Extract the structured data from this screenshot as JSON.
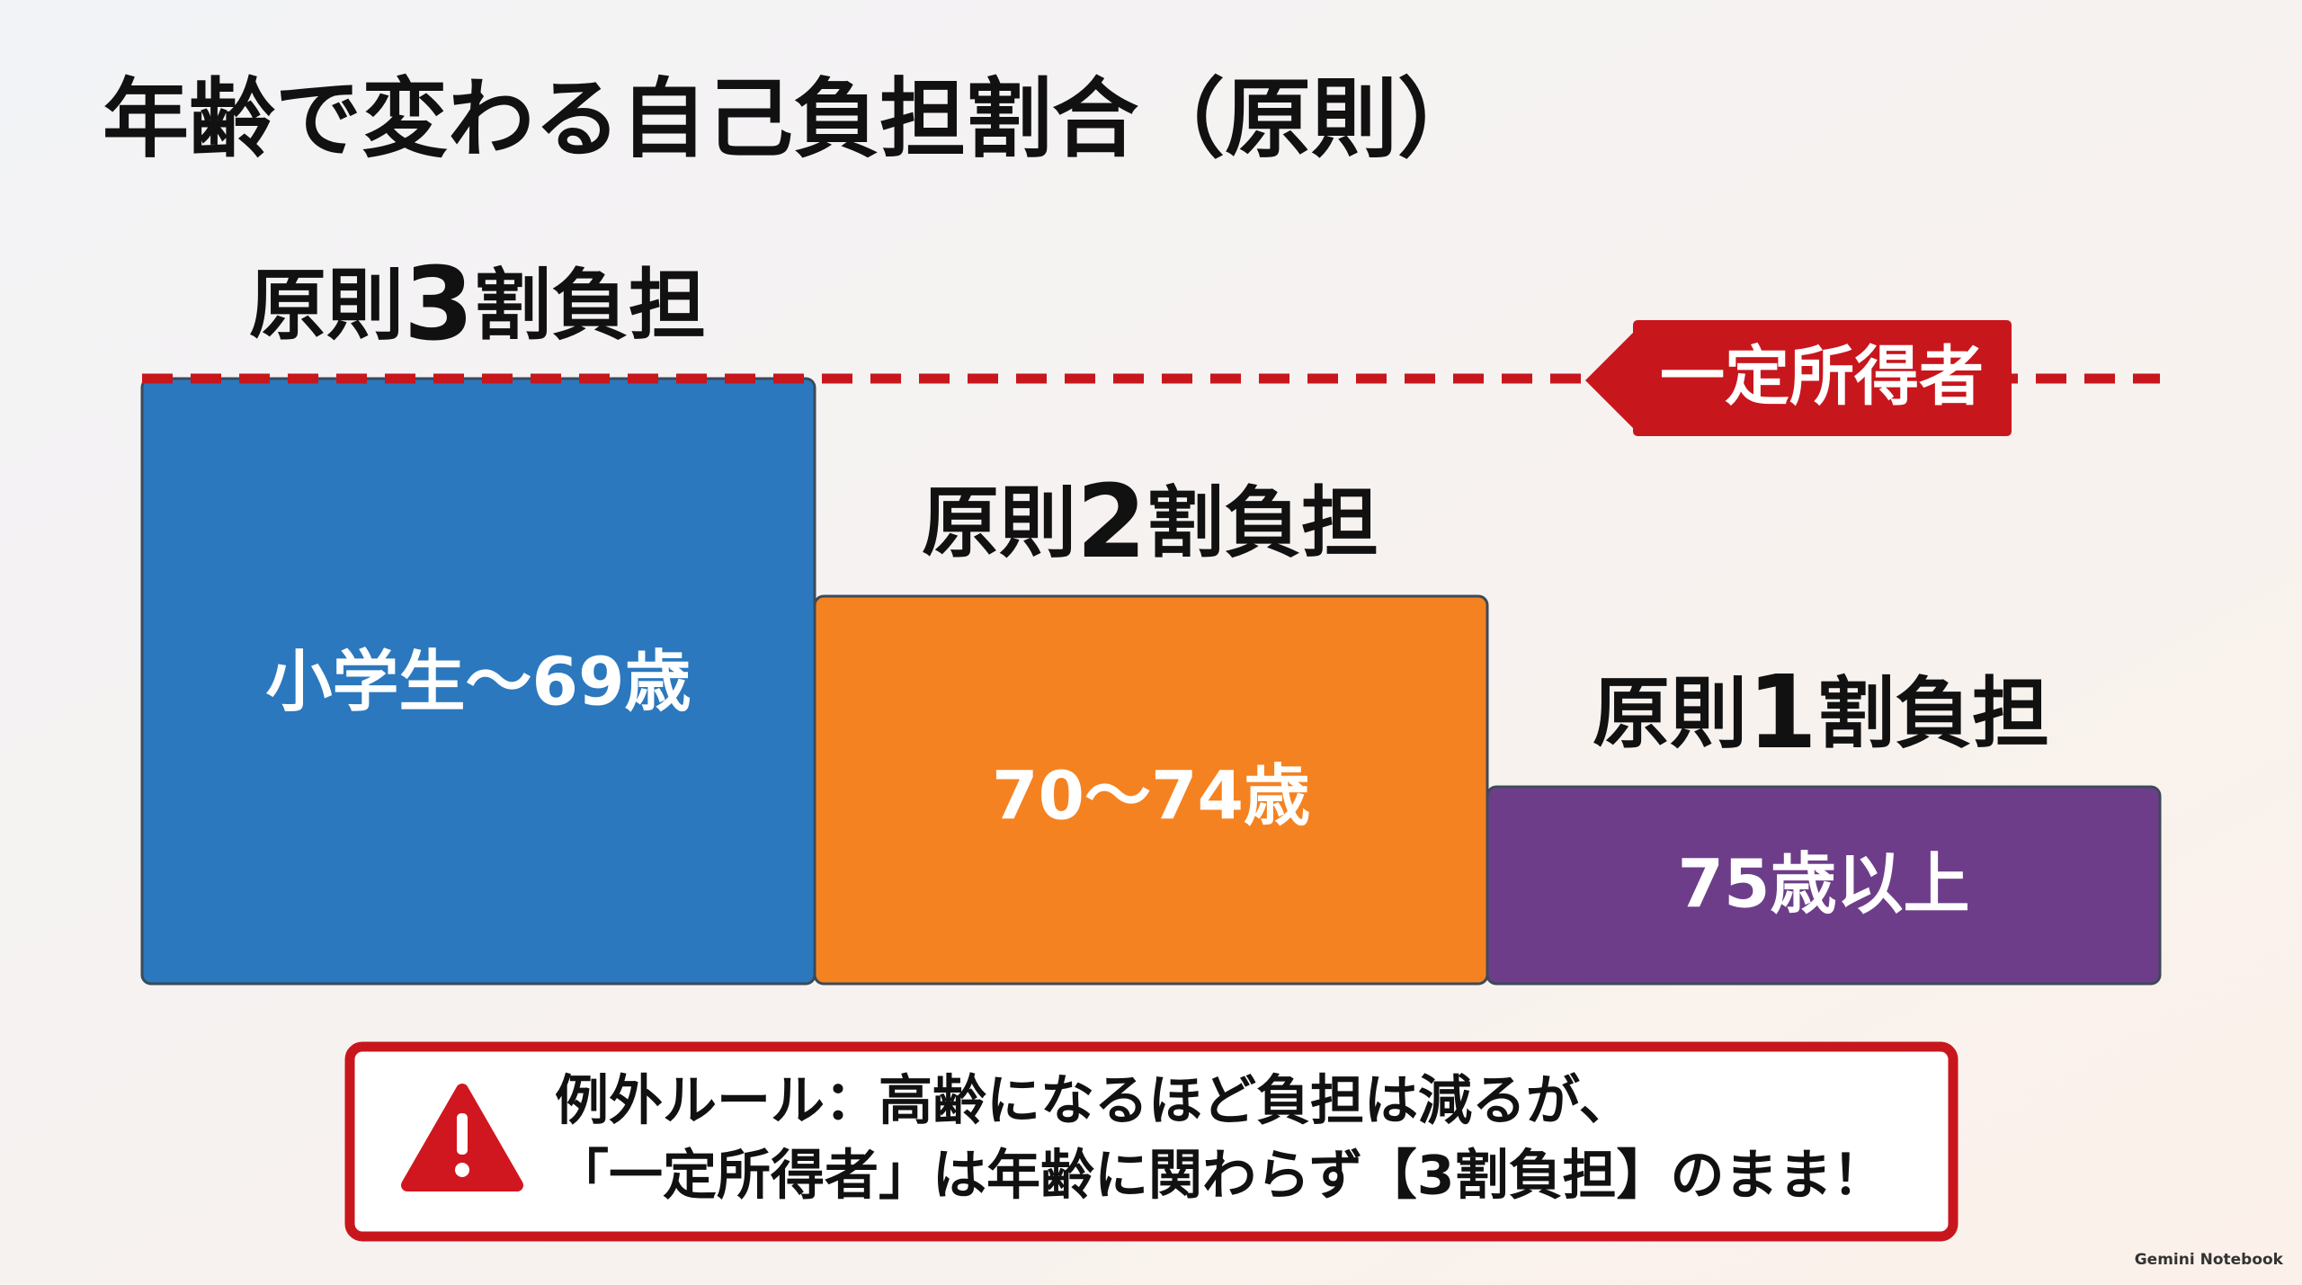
{
  "title": "年齢で変わる自己負担割合（原則）",
  "blocks": [
    {
      "heading_prefix": "原則",
      "heading_number": "3",
      "heading_suffix": "割負担",
      "label": "小学生～69歳"
    },
    {
      "heading_prefix": "原則",
      "heading_number": "2",
      "heading_suffix": "割負担",
      "label": "70～74歳"
    },
    {
      "heading_prefix": "原則",
      "heading_number": "1",
      "heading_suffix": "割負担",
      "label": "75歳以上"
    }
  ],
  "line_tag": "一定所得者",
  "notice": {
    "line1": "例外ルール：高齢になるほど負担は減るが、",
    "line2": "「一定所得者」は年齢に関わらず【3割負担】のまま！"
  },
  "watermark": "Gemini Notebook"
}
